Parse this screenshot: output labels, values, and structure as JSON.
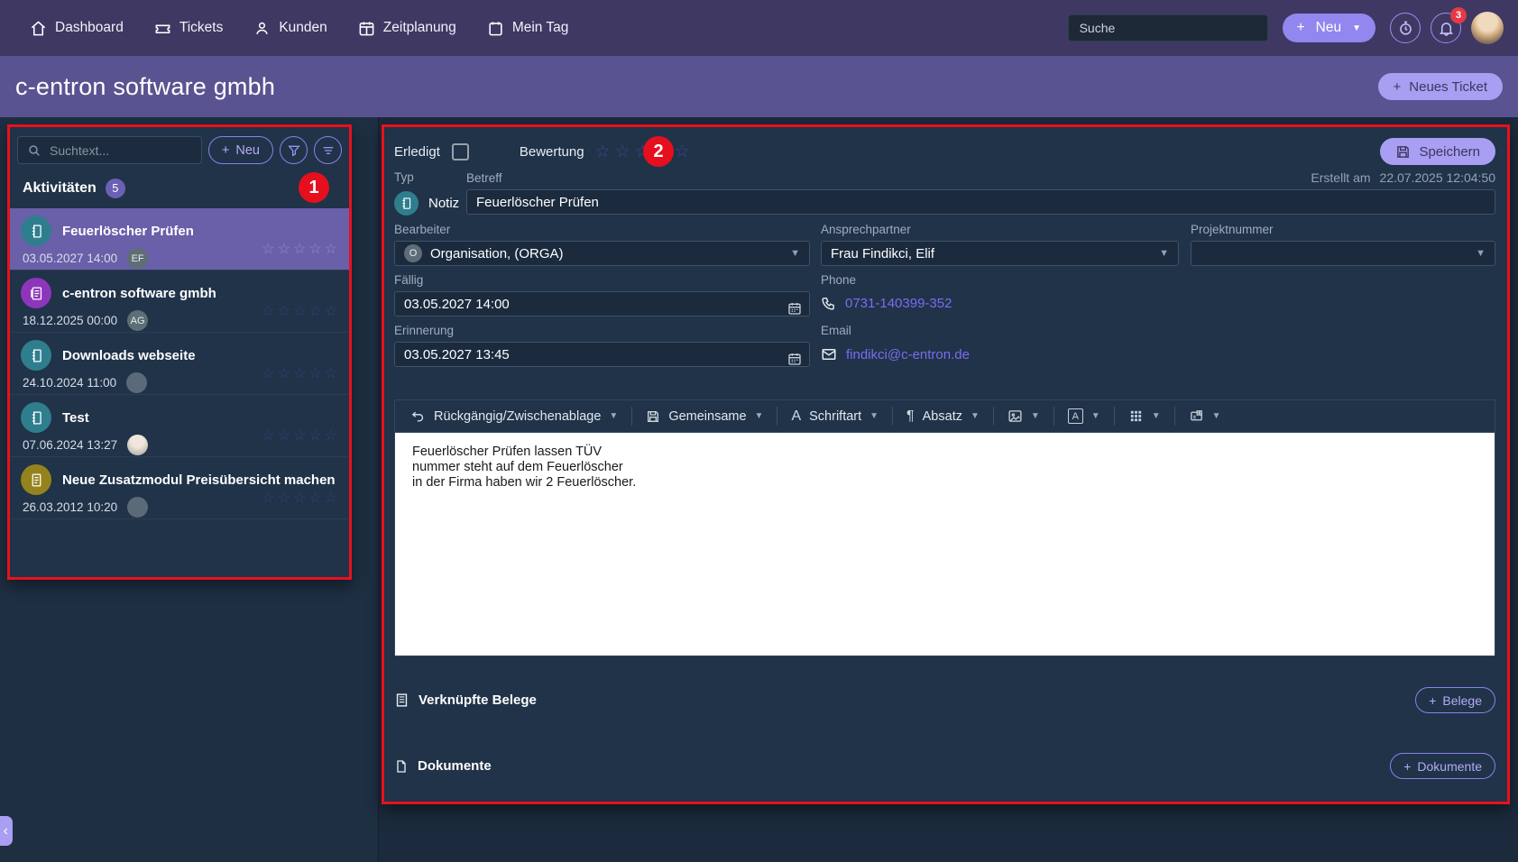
{
  "navbar": {
    "items": [
      {
        "label": "Dashboard"
      },
      {
        "label": "Tickets"
      },
      {
        "label": "Kunden"
      },
      {
        "label": "Zeitplanung"
      },
      {
        "label": "Mein Tag"
      }
    ],
    "search_placeholder": "Suche",
    "neu_label": "Neu",
    "notification_count": "3"
  },
  "header": {
    "title": "c-entron software gmbh",
    "neues_ticket_label": "Neues Ticket"
  },
  "annotations": {
    "box1": "1",
    "box2": "2"
  },
  "left_panel": {
    "search_placeholder": "Suchtext...",
    "neu_label": "Neu",
    "heading": "Aktivitäten",
    "count": "5",
    "items": [
      {
        "title": "Feuerlöscher Prüfen",
        "datetime": "03.05.2027 14:00",
        "badge": "EF",
        "icon": "note-icon",
        "icon_color": "#2f7e8e",
        "selected": true,
        "rating": 0
      },
      {
        "title": "c-entron software gmbh",
        "datetime": "18.12.2025 00:00",
        "badge": "AG",
        "icon": "notes-icon",
        "icon_color": "#8d36bb",
        "selected": false,
        "rating": 0
      },
      {
        "title": "Downloads webseite",
        "datetime": "24.10.2024 11:00",
        "badge": "",
        "icon": "note-icon",
        "icon_color": "#2f7e8e",
        "selected": false,
        "rating": 0
      },
      {
        "title": "Test",
        "datetime": "07.06.2024 13:27",
        "badge": "photo",
        "icon": "note-icon",
        "icon_color": "#2f7e8e",
        "selected": false,
        "rating": 0
      },
      {
        "title": "Neue Zusatzmodul Preisübersicht machen",
        "datetime": "26.03.2012 10:20",
        "badge": "",
        "icon": "doc-icon",
        "icon_color": "#94831d",
        "selected": false,
        "rating": 0
      }
    ]
  },
  "detail": {
    "erledigt_label": "Erledigt",
    "erledigt_checked": false,
    "bewertung_label": "Bewertung",
    "bewertung_rating": 0,
    "bewertung_max": 5,
    "speichern_label": "Speichern",
    "typ_label": "Typ",
    "typ_value": "Notiz",
    "betreff_label": "Betreff",
    "betreff_value": "Feuerlöscher Prüfen",
    "created_label": "Erstellt am",
    "created_value": "22.07.2025 12:04:50",
    "bearbeiter_label": "Bearbeiter",
    "bearbeiter_value": "Organisation, (ORGA)",
    "bearbeiter_avatar": "O",
    "ansprechpartner_label": "Ansprechpartner",
    "ansprechpartner_value": "Frau  Findikci, Elif",
    "projektnummer_label": "Projektnummer",
    "projektnummer_value": "",
    "faellig_label": "Fällig",
    "faellig_value": "03.05.2027 14:00",
    "phone_label": "Phone",
    "phone_value": "0731-140399-352",
    "erinnerung_label": "Erinnerung",
    "erinnerung_value": "03.05.2027 13:45",
    "email_label": "Email",
    "email_value": "findikci@c-entron.de",
    "editor": {
      "toolbar": [
        {
          "icon": "undo-icon",
          "label": "Rückgängig/Zwischenablage"
        },
        {
          "icon": "save-icon",
          "label": "Gemeinsame"
        },
        {
          "icon": "font-icon",
          "label": "Schriftart"
        },
        {
          "icon": "paragraph-icon",
          "label": "Absatz"
        },
        {
          "icon": "image-icon",
          "label": ""
        },
        {
          "icon": "fontcolor-icon",
          "label": ""
        },
        {
          "icon": "table-icon",
          "label": ""
        },
        {
          "icon": "insert-icon",
          "label": ""
        }
      ],
      "content_lines": [
        "Feuerlöscher Prüfen lassen TÜV",
        "nummer steht auf dem Feuerlöscher",
        "in der Firma haben wir 2 Feuerlöscher."
      ]
    },
    "belege_label": "Verknüpfte Belege",
    "belege_button": "Belege",
    "dokumente_label": "Dokumente",
    "dokumente_button": "Dokumente"
  }
}
